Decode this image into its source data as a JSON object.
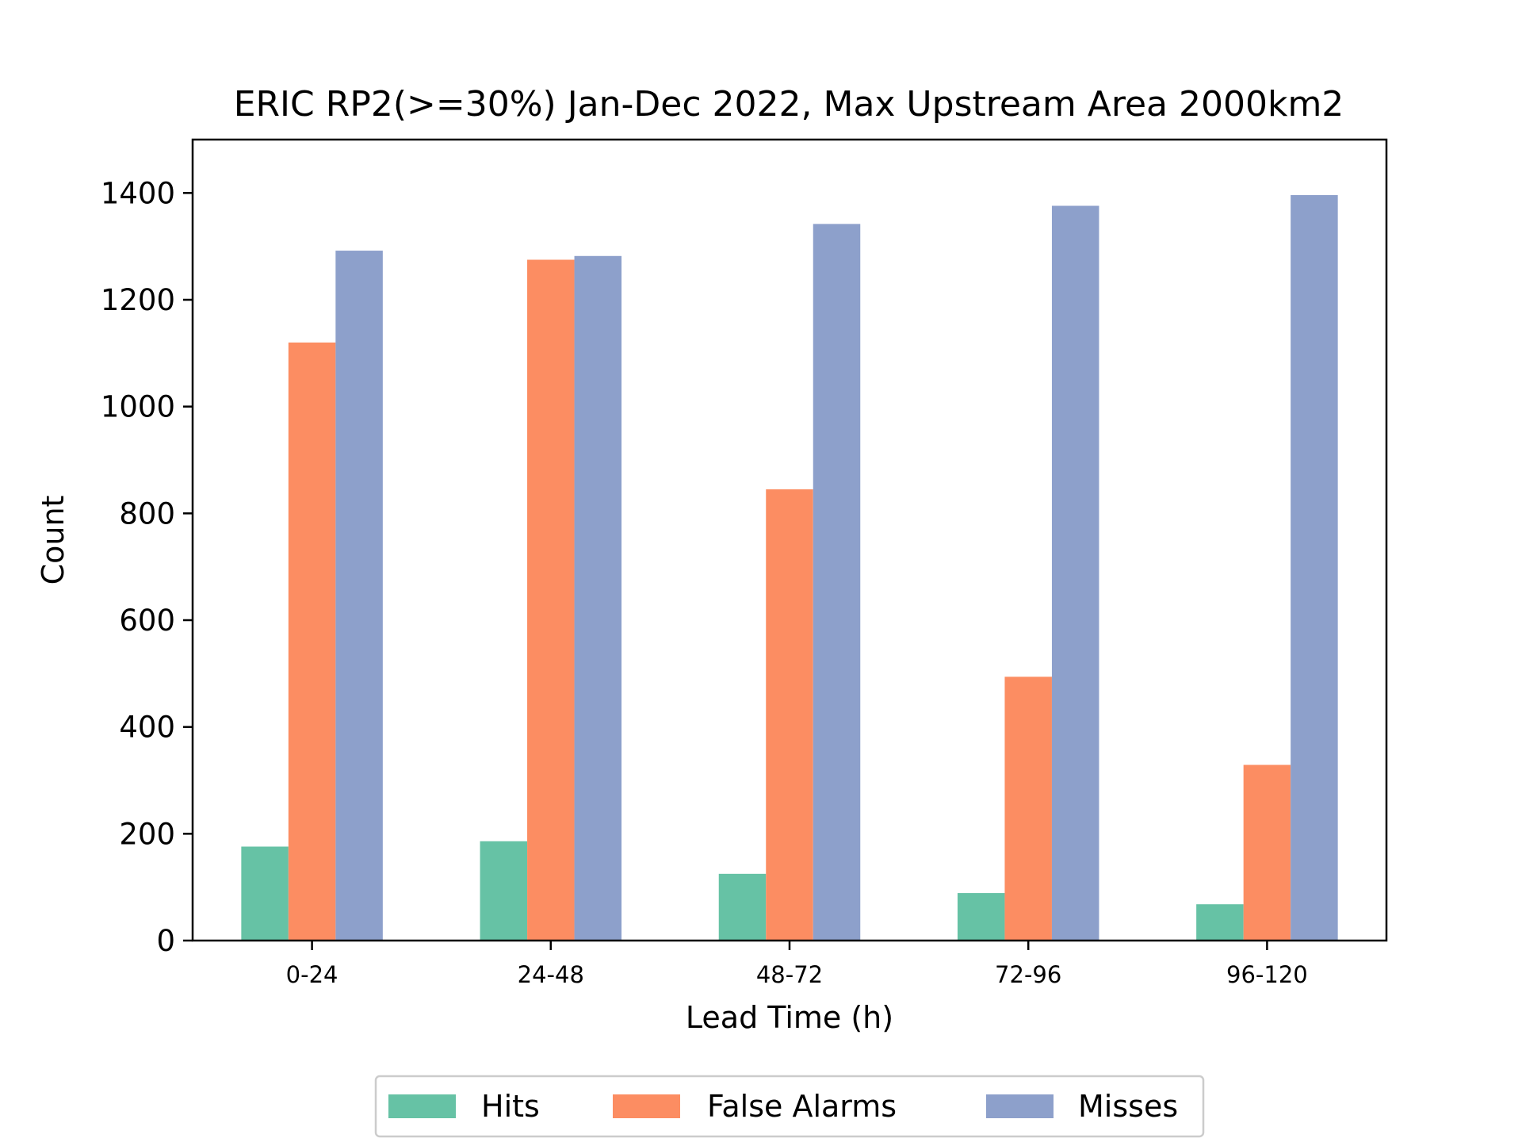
{
  "chart_data": {
    "type": "bar",
    "title": "ERIC RP2(>=30%) Jan-Dec 2022, Max Upstream Area 2000km2",
    "xlabel": "Lead Time (h)",
    "ylabel": "Count",
    "categories": [
      "0-24",
      "24-48",
      "48-72",
      "72-96",
      "96-120"
    ],
    "ylim": [
      0,
      1500
    ],
    "yticks": [
      0,
      200,
      400,
      600,
      800,
      1000,
      1200,
      1400
    ],
    "grid": false,
    "legend_position": "bottom-center",
    "series": [
      {
        "name": "Hits",
        "color": "#66c2a5",
        "values": [
          176,
          186,
          125,
          89,
          68
        ]
      },
      {
        "name": "False Alarms",
        "color": "#fc8d62",
        "values": [
          1120,
          1275,
          845,
          494,
          329
        ]
      },
      {
        "name": "Misses",
        "color": "#8da0cb",
        "values": [
          1292,
          1282,
          1342,
          1376,
          1396
        ]
      }
    ]
  }
}
